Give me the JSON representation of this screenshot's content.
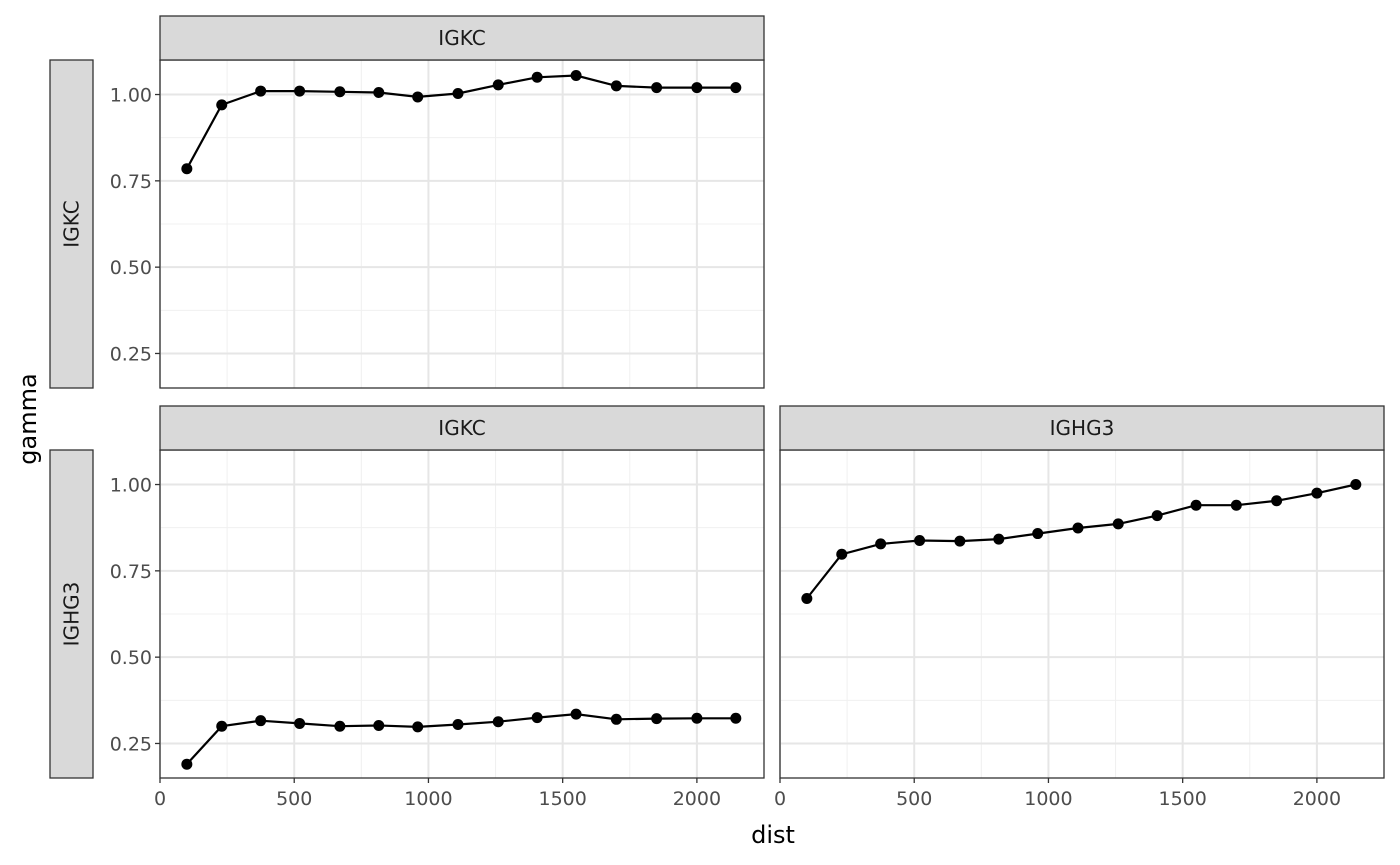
{
  "chart_data": {
    "type": "line",
    "layout": "facet_grid",
    "xlabel": "dist",
    "ylabel": "gamma",
    "xlim": [
      0,
      2250
    ],
    "ylim": [
      0.15,
      1.1
    ],
    "x_ticks": [
      0,
      500,
      1000,
      1500,
      2000
    ],
    "y_ticks": [
      0.25,
      0.5,
      0.75,
      1.0
    ],
    "y_tick_labels": [
      "0.25",
      "0.50",
      "0.75",
      "1.00"
    ],
    "grid": true,
    "point_color": "#000000",
    "line_color": "#000000",
    "x": [
      100,
      230,
      375,
      520,
      670,
      815,
      960,
      1110,
      1260,
      1405,
      1550,
      1700,
      1850,
      2000,
      2145
    ],
    "panels": [
      {
        "id": "igkc-igkc",
        "col_label": "IGKC",
        "row_label": "IGKC",
        "values": [
          0.785,
          0.97,
          1.01,
          1.01,
          1.008,
          1.006,
          0.993,
          1.003,
          1.028,
          1.05,
          1.055,
          1.025,
          1.02,
          1.02,
          1.02
        ]
      },
      {
        "id": "igkc-ighg3",
        "col_label": "IGKC",
        "row_label": "IGHG3",
        "values": [
          0.19,
          0.3,
          0.316,
          0.308,
          0.3,
          0.302,
          0.298,
          0.305,
          0.313,
          0.325,
          0.335,
          0.32,
          0.322,
          0.323,
          0.323
        ]
      },
      {
        "id": "ighg3-ighg3",
        "col_label": "IGHG3",
        "row_label": "",
        "values": [
          0.67,
          0.798,
          0.828,
          0.838,
          0.836,
          0.842,
          0.858,
          0.874,
          0.886,
          0.91,
          0.94,
          0.94,
          0.953,
          0.975,
          1.0
        ]
      }
    ]
  }
}
